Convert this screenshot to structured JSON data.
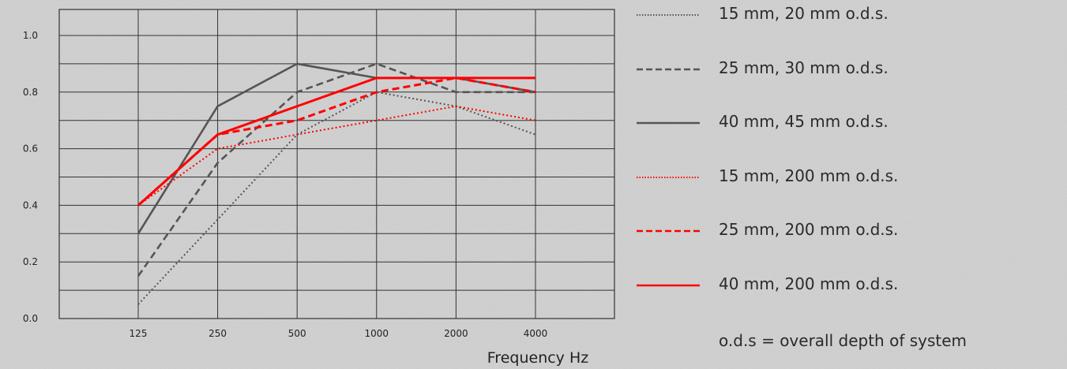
{
  "chart_data": {
    "type": "line",
    "categories": [
      "125",
      "250",
      "500",
      "1000",
      "2000",
      "4000"
    ],
    "xlabel": "Frequency Hz",
    "ylabel": "",
    "ylim": [
      0.0,
      1.0
    ],
    "yticks": [
      "0.0",
      "0.2",
      "0.4",
      "0.6",
      "0.8",
      "1.0"
    ],
    "grid": true,
    "legend_placement": "right",
    "series": [
      {
        "name": "15 mm, 20 mm o.d.s.",
        "color": "#555555",
        "style": "dotted",
        "values": [
          0.05,
          0.35,
          0.65,
          0.8,
          0.75,
          0.65
        ]
      },
      {
        "name": "25 mm, 30 mm o.d.s.",
        "color": "#555555",
        "style": "dashed",
        "values": [
          0.15,
          0.55,
          0.8,
          0.9,
          0.8,
          0.8
        ]
      },
      {
        "name": "40 mm, 45 mm o.d.s.",
        "color": "#555555",
        "style": "solid",
        "values": [
          0.3,
          0.75,
          0.9,
          0.85,
          0.85,
          0.8
        ]
      },
      {
        "name": "15 mm, 200 mm o.d.s.",
        "color": "#ff0000",
        "style": "dotted",
        "values": [
          0.4,
          0.6,
          0.65,
          0.7,
          0.75,
          0.7
        ]
      },
      {
        "name": "25 mm, 200 mm o.d.s.",
        "color": "#ff0000",
        "style": "dashed",
        "values": [
          0.4,
          0.65,
          0.7,
          0.8,
          0.85,
          0.8
        ]
      },
      {
        "name": "40 mm, 200 mm o.d.s.",
        "color": "#ff0000",
        "style": "solid",
        "values": [
          0.4,
          0.65,
          0.75,
          0.85,
          0.85,
          0.85
        ]
      }
    ]
  },
  "legend_note": "o.d.s = overall depth of system"
}
